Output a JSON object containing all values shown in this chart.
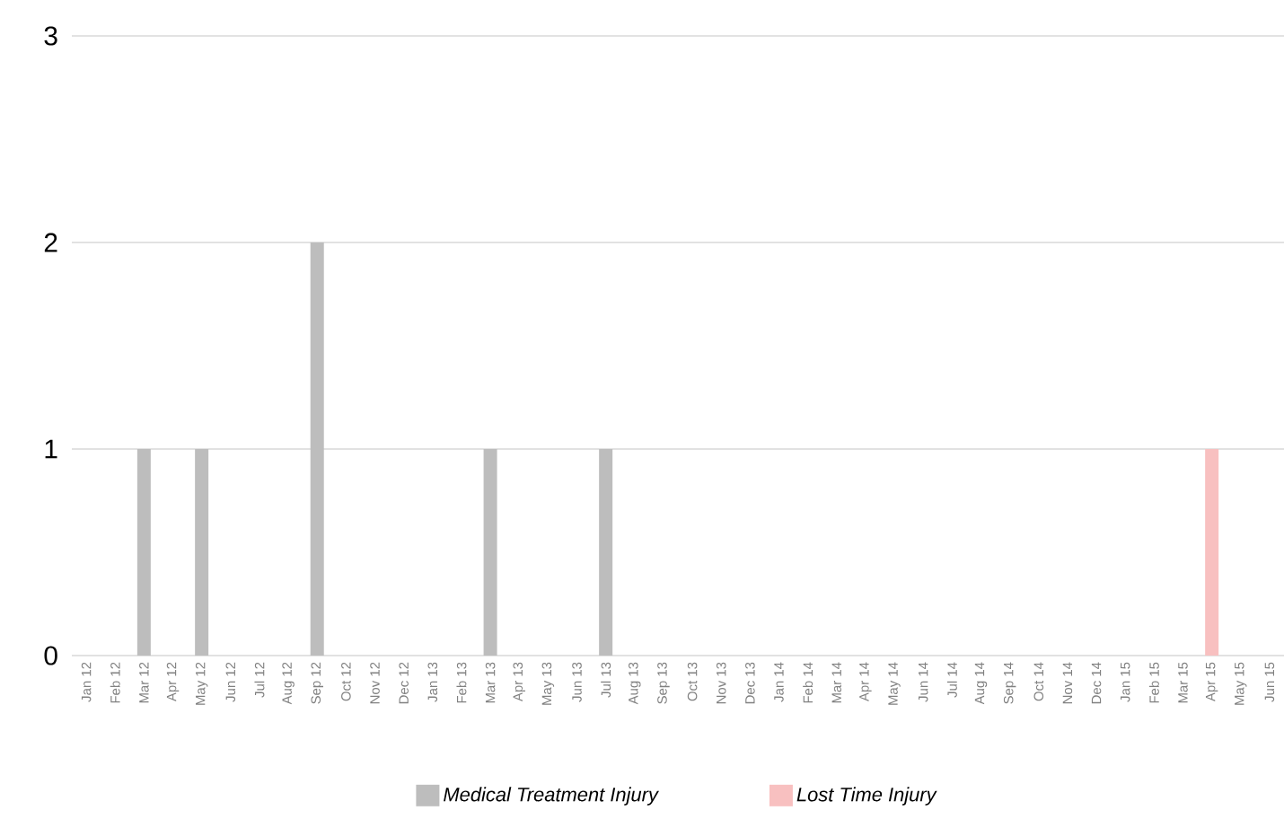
{
  "chart_data": {
    "type": "bar",
    "stacked": true,
    "categories": [
      "Jan 12",
      "Feb 12",
      "Mar 12",
      "Apr 12",
      "May 12",
      "Jun 12",
      "Jul 12",
      "Aug 12",
      "Sep 12",
      "Oct 12",
      "Nov 12",
      "Dec 12",
      "Jan 13",
      "Feb 13",
      "Mar 13",
      "Apr 13",
      "May 13",
      "Jun 13",
      "Jul 13",
      "Aug 13",
      "Sep 13",
      "Oct 13",
      "Nov 13",
      "Dec 13",
      "Jan 14",
      "Feb 14",
      "Mar 14",
      "Apr 14",
      "May 14",
      "Jun 14",
      "Jul 14",
      "Aug 14",
      "Sep 14",
      "Oct 14",
      "Nov 14",
      "Dec 14",
      "Jan 15",
      "Feb 15",
      "Mar 15",
      "Apr 15",
      "May 15",
      "Jun 15"
    ],
    "series": [
      {
        "name": "Medical Treatment Injury",
        "color": "#bdbdbd",
        "values": [
          0,
          0,
          1,
          0,
          1,
          0,
          0,
          0,
          2,
          0,
          0,
          0,
          0,
          0,
          1,
          0,
          0,
          0,
          1,
          0,
          0,
          0,
          0,
          0,
          0,
          0,
          0,
          0,
          0,
          0,
          0,
          0,
          0,
          0,
          0,
          0,
          0,
          0,
          0,
          0,
          0,
          0
        ]
      },
      {
        "name": "Lost Time Injury",
        "color": "#f8c0c0",
        "values": [
          0,
          0,
          0,
          0,
          0,
          0,
          0,
          0,
          0,
          0,
          0,
          0,
          0,
          0,
          0,
          0,
          0,
          0,
          0,
          0,
          0,
          0,
          0,
          0,
          0,
          0,
          0,
          0,
          0,
          0,
          0,
          0,
          0,
          0,
          0,
          0,
          0,
          0,
          0,
          1,
          0,
          0
        ]
      }
    ],
    "ylim": [
      0,
      3
    ],
    "yticks": [
      0,
      1,
      2,
      3
    ],
    "grid": "y",
    "legend": "bottom"
  }
}
